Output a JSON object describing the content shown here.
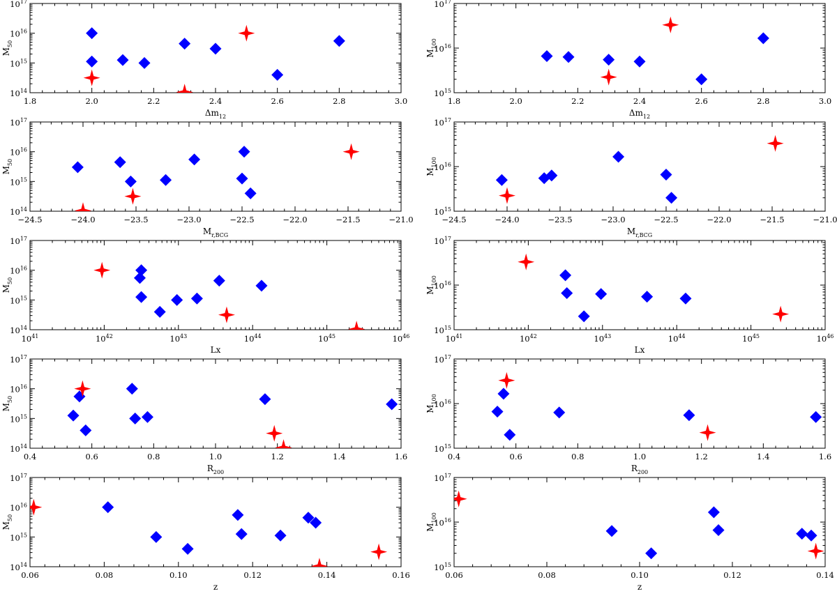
{
  "figure": {
    "marker_colors": {
      "diamond": "#0000ff",
      "star": "#ff0000"
    }
  },
  "chart_data": [
    {
      "type": "scatter",
      "id": "m50-vs-dm12",
      "ylabel": "M",
      "ylabel_sub": "50",
      "xlabel": "Δm",
      "xlabel_sub": "12",
      "xscale": "linear",
      "xlim": [
        1.8,
        3.0
      ],
      "xticks": [
        1.8,
        2.0,
        2.2,
        2.4,
        2.6,
        2.8,
        3.0
      ],
      "xtick_labels": [
        "1.8",
        "2.0",
        "2.2",
        "2.4",
        "2.6",
        "2.8",
        "3.0"
      ],
      "yscale": "log",
      "ylim": [
        14,
        17
      ],
      "yticks": [
        14,
        15,
        16,
        17
      ],
      "ytick_base": "10",
      "ytick_exps": [
        "14",
        "15",
        "16",
        "17"
      ],
      "series": [
        {
          "name": "diamonds",
          "marker": "diamond",
          "points": [
            [
              2.0,
              16.0
            ],
            [
              2.0,
              15.05
            ],
            [
              2.1,
              15.1
            ],
            [
              2.17,
              15.0
            ],
            [
              2.3,
              15.65
            ],
            [
              2.4,
              15.48
            ],
            [
              2.6,
              14.6
            ],
            [
              2.8,
              15.74
            ]
          ]
        },
        {
          "name": "stars",
          "marker": "star",
          "points": [
            [
              2.0,
              14.5
            ],
            [
              2.3,
              14.02
            ],
            [
              2.5,
              16.0
            ]
          ]
        }
      ]
    },
    {
      "type": "scatter",
      "id": "m100-vs-dm12",
      "ylabel": "M",
      "ylabel_sub": "100",
      "xlabel": "Δm",
      "xlabel_sub": "12",
      "xscale": "linear",
      "xlim": [
        1.8,
        3.0
      ],
      "xticks": [
        1.8,
        2.0,
        2.2,
        2.4,
        2.6,
        2.8,
        3.0
      ],
      "xtick_labels": [
        "1.8",
        "2.0",
        "2.2",
        "2.4",
        "2.6",
        "2.8",
        "3.0"
      ],
      "yscale": "log",
      "ylim": [
        15,
        17
      ],
      "yticks": [
        15,
        16,
        17
      ],
      "ytick_base": "10",
      "ytick_exps": [
        "15",
        "16",
        "17"
      ],
      "series": [
        {
          "name": "diamonds",
          "marker": "diamond",
          "points": [
            [
              2.1,
              15.82
            ],
            [
              2.17,
              15.8
            ],
            [
              2.3,
              15.74
            ],
            [
              2.4,
              15.7
            ],
            [
              2.6,
              15.3
            ],
            [
              2.8,
              16.22
            ]
          ]
        },
        {
          "name": "stars",
          "marker": "star",
          "points": [
            [
              2.3,
              15.35
            ],
            [
              2.5,
              16.52
            ]
          ]
        }
      ]
    },
    {
      "type": "scatter",
      "id": "m50-vs-mr",
      "ylabel": "M",
      "ylabel_sub": "50",
      "xlabel": "M",
      "xlabel_sub": "r,BCG",
      "xscale": "linear",
      "xlim": [
        -24.5,
        -21.0
      ],
      "xticks": [
        -24.5,
        -24.0,
        -23.5,
        -23.0,
        -22.5,
        -22.0,
        -21.5,
        -21.0
      ],
      "xtick_labels": [
        "−24.5",
        "−24.0",
        "−23.5",
        "−23.0",
        "−22.5",
        "−22.0",
        "−21.5",
        "−21.0"
      ],
      "yscale": "log",
      "ylim": [
        14,
        17
      ],
      "yticks": [
        14,
        15,
        16,
        17
      ],
      "ytick_base": "10",
      "ytick_exps": [
        "14",
        "15",
        "16",
        "17"
      ],
      "series": [
        {
          "name": "diamonds",
          "marker": "diamond",
          "points": [
            [
              -24.05,
              15.48
            ],
            [
              -23.65,
              15.65
            ],
            [
              -23.55,
              15.0
            ],
            [
              -23.22,
              15.05
            ],
            [
              -22.95,
              15.74
            ],
            [
              -22.5,
              15.1
            ],
            [
              -22.48,
              16.0
            ],
            [
              -22.42,
              14.6
            ]
          ]
        },
        {
          "name": "stars",
          "marker": "star",
          "points": [
            [
              -24.0,
              14.02
            ],
            [
              -23.53,
              14.5
            ],
            [
              -21.47,
              16.0
            ]
          ]
        }
      ]
    },
    {
      "type": "scatter",
      "id": "m100-vs-mr",
      "ylabel": "M",
      "ylabel_sub": "100",
      "xlabel": "M",
      "xlabel_sub": "r,BCG",
      "xscale": "linear",
      "xlim": [
        -24.5,
        -21.0
      ],
      "xticks": [
        -24.5,
        -24.0,
        -23.5,
        -23.0,
        -22.5,
        -22.0,
        -21.5,
        -21.0
      ],
      "xtick_labels": [
        "−24.5",
        "−24.0",
        "−23.5",
        "−23.0",
        "−22.5",
        "−22.0",
        "−21.5",
        "−21.0"
      ],
      "yscale": "log",
      "ylim": [
        15,
        17
      ],
      "yticks": [
        15,
        16,
        17
      ],
      "ytick_base": "10",
      "ytick_exps": [
        "15",
        "16",
        "17"
      ],
      "series": [
        {
          "name": "diamonds",
          "marker": "diamond",
          "points": [
            [
              -24.05,
              15.7
            ],
            [
              -23.65,
              15.74
            ],
            [
              -23.58,
              15.8
            ],
            [
              -22.95,
              16.22
            ],
            [
              -22.5,
              15.82
            ],
            [
              -22.45,
              15.3
            ]
          ]
        },
        {
          "name": "stars",
          "marker": "star",
          "points": [
            [
              -24.0,
              15.35
            ],
            [
              -21.47,
              16.52
            ]
          ]
        }
      ]
    },
    {
      "type": "scatter",
      "id": "m50-vs-lx",
      "ylabel": "M",
      "ylabel_sub": "50",
      "xlabel": "Lx",
      "xlabel_sub": "",
      "xscale": "log",
      "xlim": [
        41,
        46
      ],
      "xticks": [
        41,
        42,
        43,
        44,
        45,
        46
      ],
      "xtick_base": "10",
      "xtick_exps": [
        "41",
        "42",
        "43",
        "44",
        "45",
        "46"
      ],
      "yscale": "log",
      "ylim": [
        14,
        17
      ],
      "yticks": [
        14,
        15,
        16,
        17
      ],
      "ytick_base": "10",
      "ytick_exps": [
        "14",
        "15",
        "16",
        "17"
      ],
      "series": [
        {
          "name": "diamonds",
          "marker": "diamond",
          "points": [
            [
              42.5,
              16.0
            ],
            [
              42.48,
              15.74
            ],
            [
              42.5,
              15.1
            ],
            [
              42.75,
              14.6
            ],
            [
              42.98,
              15.0
            ],
            [
              43.25,
              15.05
            ],
            [
              43.55,
              15.65
            ],
            [
              44.12,
              15.48
            ]
          ]
        },
        {
          "name": "stars",
          "marker": "star",
          "points": [
            [
              41.97,
              16.0
            ],
            [
              43.65,
              14.5
            ],
            [
              45.4,
              14.02
            ]
          ]
        }
      ]
    },
    {
      "type": "scatter",
      "id": "m100-vs-lx",
      "ylabel": "M",
      "ylabel_sub": "100",
      "xlabel": "Lx",
      "xlabel_sub": "",
      "xscale": "log",
      "xlim": [
        41,
        46
      ],
      "xticks": [
        41,
        42,
        43,
        44,
        45,
        46
      ],
      "xtick_base": "10",
      "xtick_exps": [
        "41",
        "42",
        "43",
        "44",
        "45",
        "46"
      ],
      "yscale": "log",
      "ylim": [
        15,
        17
      ],
      "yticks": [
        15,
        16,
        17
      ],
      "ytick_base": "10",
      "ytick_exps": [
        "15",
        "16",
        "17"
      ],
      "series": [
        {
          "name": "diamonds",
          "marker": "diamond",
          "points": [
            [
              42.5,
              16.22
            ],
            [
              42.52,
              15.82
            ],
            [
              42.75,
              15.3
            ],
            [
              42.98,
              15.8
            ],
            [
              43.6,
              15.74
            ],
            [
              44.12,
              15.7
            ]
          ]
        },
        {
          "name": "stars",
          "marker": "star",
          "points": [
            [
              41.97,
              16.52
            ],
            [
              45.4,
              15.35
            ]
          ]
        }
      ]
    },
    {
      "type": "scatter",
      "id": "m50-vs-r200",
      "ylabel": "M",
      "ylabel_sub": "50",
      "xlabel": "R",
      "xlabel_sub": "200",
      "xscale": "linear",
      "xlim": [
        0.4,
        1.6
      ],
      "xticks": [
        0.4,
        0.6,
        0.8,
        1.0,
        1.2,
        1.4,
        1.6
      ],
      "xtick_labels": [
        "0.4",
        "0.6",
        "0.8",
        "1.0",
        "1.2",
        "1.4",
        "1.6"
      ],
      "yscale": "log",
      "ylim": [
        14,
        17
      ],
      "yticks": [
        14,
        15,
        16,
        17
      ],
      "ytick_base": "10",
      "ytick_exps": [
        "14",
        "15",
        "16",
        "17"
      ],
      "series": [
        {
          "name": "diamonds",
          "marker": "diamond",
          "points": [
            [
              0.54,
              15.1
            ],
            [
              0.56,
              15.74
            ],
            [
              0.58,
              14.6
            ],
            [
              0.73,
              16.0
            ],
            [
              0.74,
              15.0
            ],
            [
              0.78,
              15.05
            ],
            [
              1.16,
              15.65
            ],
            [
              1.57,
              15.48
            ]
          ]
        },
        {
          "name": "stars",
          "marker": "star",
          "points": [
            [
              0.57,
              16.0
            ],
            [
              1.19,
              14.5
            ],
            [
              1.22,
              14.02
            ]
          ]
        }
      ]
    },
    {
      "type": "scatter",
      "id": "m100-vs-r200",
      "ylabel": "M",
      "ylabel_sub": "100",
      "xlabel": "R",
      "xlabel_sub": "200",
      "xscale": "linear",
      "xlim": [
        0.4,
        1.6
      ],
      "xticks": [
        0.4,
        0.6,
        0.8,
        1.0,
        1.2,
        1.4,
        1.6
      ],
      "xtick_labels": [
        "0.4",
        "0.6",
        "0.8",
        "1.0",
        "1.2",
        "1.4",
        "1.6"
      ],
      "yscale": "log",
      "ylim": [
        15,
        17
      ],
      "yticks": [
        15,
        16,
        17
      ],
      "ytick_base": "10",
      "ytick_exps": [
        "15",
        "16",
        "17"
      ],
      "series": [
        {
          "name": "diamonds",
          "marker": "diamond",
          "points": [
            [
              0.54,
              15.82
            ],
            [
              0.56,
              16.22
            ],
            [
              0.58,
              15.3
            ],
            [
              0.74,
              15.8
            ],
            [
              1.16,
              15.74
            ],
            [
              1.57,
              15.7
            ]
          ]
        },
        {
          "name": "stars",
          "marker": "star",
          "points": [
            [
              0.57,
              16.52
            ],
            [
              1.22,
              15.35
            ]
          ]
        }
      ]
    },
    {
      "type": "scatter",
      "id": "m50-vs-z",
      "ylabel": "M",
      "ylabel_sub": "50",
      "xlabel": "z",
      "xlabel_sub": "",
      "xscale": "linear",
      "xlim": [
        0.06,
        0.16
      ],
      "xticks": [
        0.06,
        0.08,
        0.1,
        0.12,
        0.14,
        0.16
      ],
      "xtick_labels": [
        "0.06",
        "0.08",
        "0.10",
        "0.12",
        "0.14",
        "0.16"
      ],
      "yscale": "log",
      "ylim": [
        14,
        17
      ],
      "yticks": [
        14,
        15,
        16,
        17
      ],
      "ytick_base": "10",
      "ytick_exps": [
        "14",
        "15",
        "16",
        "17"
      ],
      "series": [
        {
          "name": "diamonds",
          "marker": "diamond",
          "points": [
            [
              0.081,
              16.0
            ],
            [
              0.094,
              15.0
            ],
            [
              0.1025,
              14.6
            ],
            [
              0.116,
              15.74
            ],
            [
              0.117,
              15.1
            ],
            [
              0.1275,
              15.05
            ],
            [
              0.135,
              15.65
            ],
            [
              0.137,
              15.48
            ]
          ]
        },
        {
          "name": "stars",
          "marker": "star",
          "points": [
            [
              0.061,
              16.0
            ],
            [
              0.138,
              14.02
            ],
            [
              0.154,
              14.5
            ]
          ]
        }
      ]
    },
    {
      "type": "scatter",
      "id": "m100-vs-z",
      "ylabel": "M",
      "ylabel_sub": "100",
      "xlabel": "z",
      "xlabel_sub": "",
      "xscale": "linear",
      "xlim": [
        0.06,
        0.14
      ],
      "xticks": [
        0.06,
        0.08,
        0.1,
        0.12,
        0.14
      ],
      "xtick_labels": [
        "0.06",
        "0.08",
        "0.10",
        "0.12",
        "0.14"
      ],
      "yscale": "log",
      "ylim": [
        15,
        17
      ],
      "yticks": [
        15,
        16,
        17
      ],
      "ytick_base": "10",
      "ytick_exps": [
        "15",
        "16",
        "17"
      ],
      "series": [
        {
          "name": "diamonds",
          "marker": "diamond",
          "points": [
            [
              0.094,
              15.8
            ],
            [
              0.1025,
              15.3
            ],
            [
              0.116,
              16.22
            ],
            [
              0.117,
              15.82
            ],
            [
              0.135,
              15.74
            ],
            [
              0.137,
              15.7
            ]
          ]
        },
        {
          "name": "stars",
          "marker": "star",
          "points": [
            [
              0.061,
              16.52
            ],
            [
              0.138,
              15.35
            ]
          ]
        }
      ]
    }
  ]
}
